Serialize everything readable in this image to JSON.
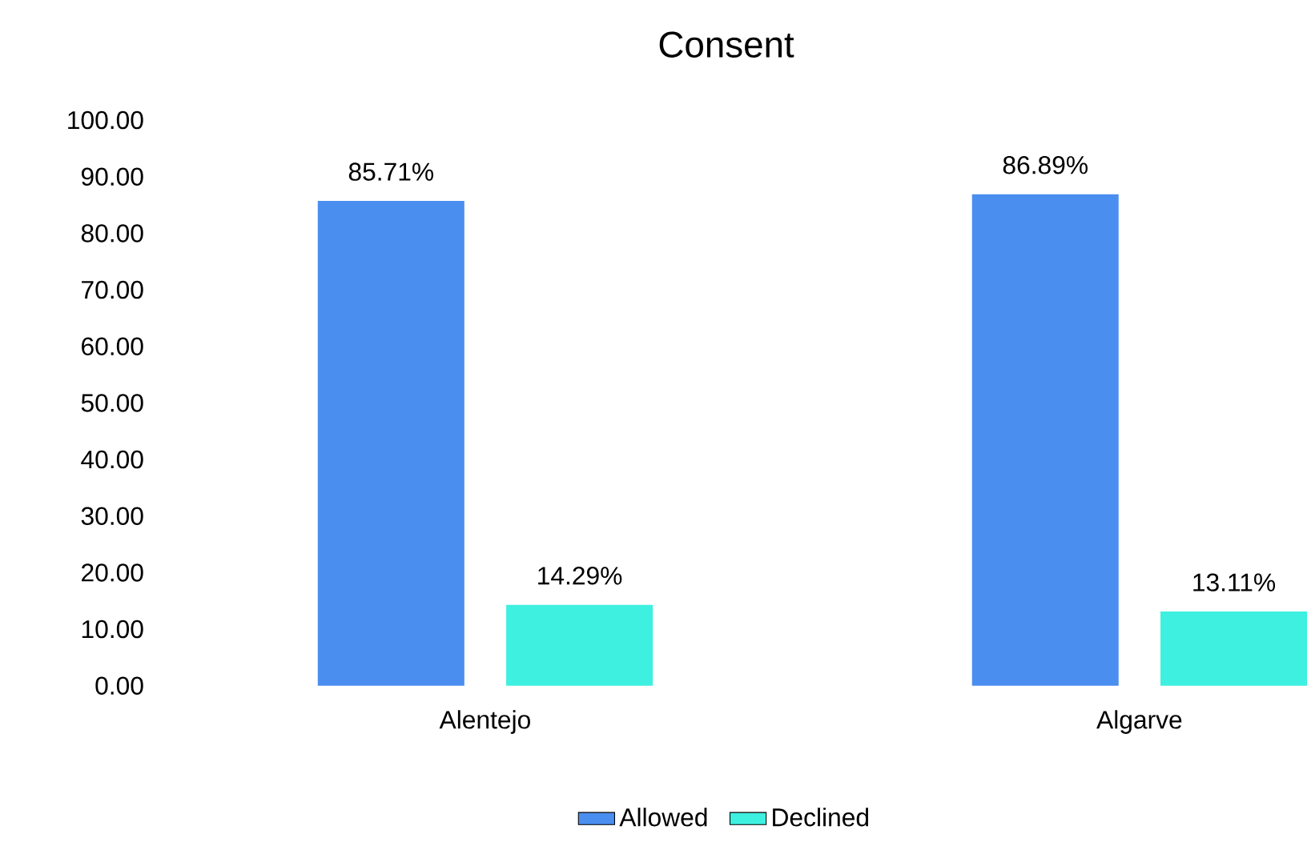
{
  "chart_data": {
    "type": "bar",
    "title": "Consent",
    "categories": [
      "Alentejo",
      "Algarve"
    ],
    "series": [
      {
        "name": "Allowed",
        "color": "#4a8ef0",
        "values": [
          85.71,
          86.89
        ],
        "value_labels": [
          "85.71%",
          "86.89%"
        ]
      },
      {
        "name": "Declined",
        "color": "#3ef0e0",
        "values": [
          14.29,
          13.11
        ],
        "value_labels": [
          "14.29%",
          "13.11%"
        ]
      }
    ],
    "ylim": [
      0,
      100
    ],
    "yticks": [
      {
        "value": 0,
        "label": "0.00"
      },
      {
        "value": 10,
        "label": "10.00"
      },
      {
        "value": 20,
        "label": "20.00"
      },
      {
        "value": 30,
        "label": "30.00"
      },
      {
        "value": 40,
        "label": "40.00"
      },
      {
        "value": 50,
        "label": "50.00"
      },
      {
        "value": 60,
        "label": "60.00"
      },
      {
        "value": 70,
        "label": "70.00"
      },
      {
        "value": 80,
        "label": "80.00"
      },
      {
        "value": 90,
        "label": "90.00"
      },
      {
        "value": 100,
        "label": "100.00"
      }
    ],
    "grid": false,
    "legend": "bottom"
  }
}
